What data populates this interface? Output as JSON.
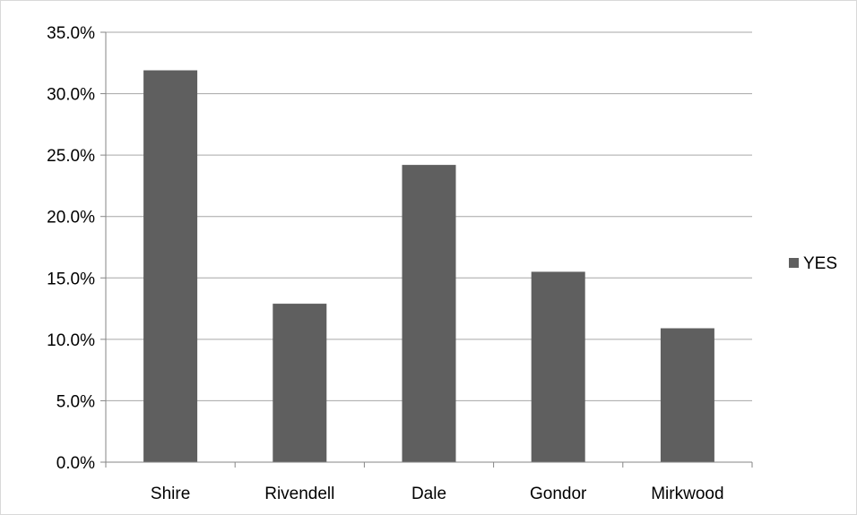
{
  "chart_data": {
    "type": "bar",
    "categories": [
      "Shire",
      "Rivendell",
      "Dale",
      "Gondor",
      "Mirkwood"
    ],
    "series": [
      {
        "name": "YES",
        "values": [
          31.9,
          12.9,
          24.2,
          15.5,
          10.9
        ],
        "color": "#5f5f5f"
      }
    ],
    "ylim": [
      0,
      35
    ],
    "yticks": [
      0,
      5,
      10,
      15,
      20,
      25,
      30,
      35
    ],
    "ytick_format": "percent_1dp",
    "grid": true,
    "legend_position": "right",
    "colors": {
      "bar": "#5f5f5f",
      "grid": "#a6a6a6",
      "axis": "#868686"
    }
  }
}
